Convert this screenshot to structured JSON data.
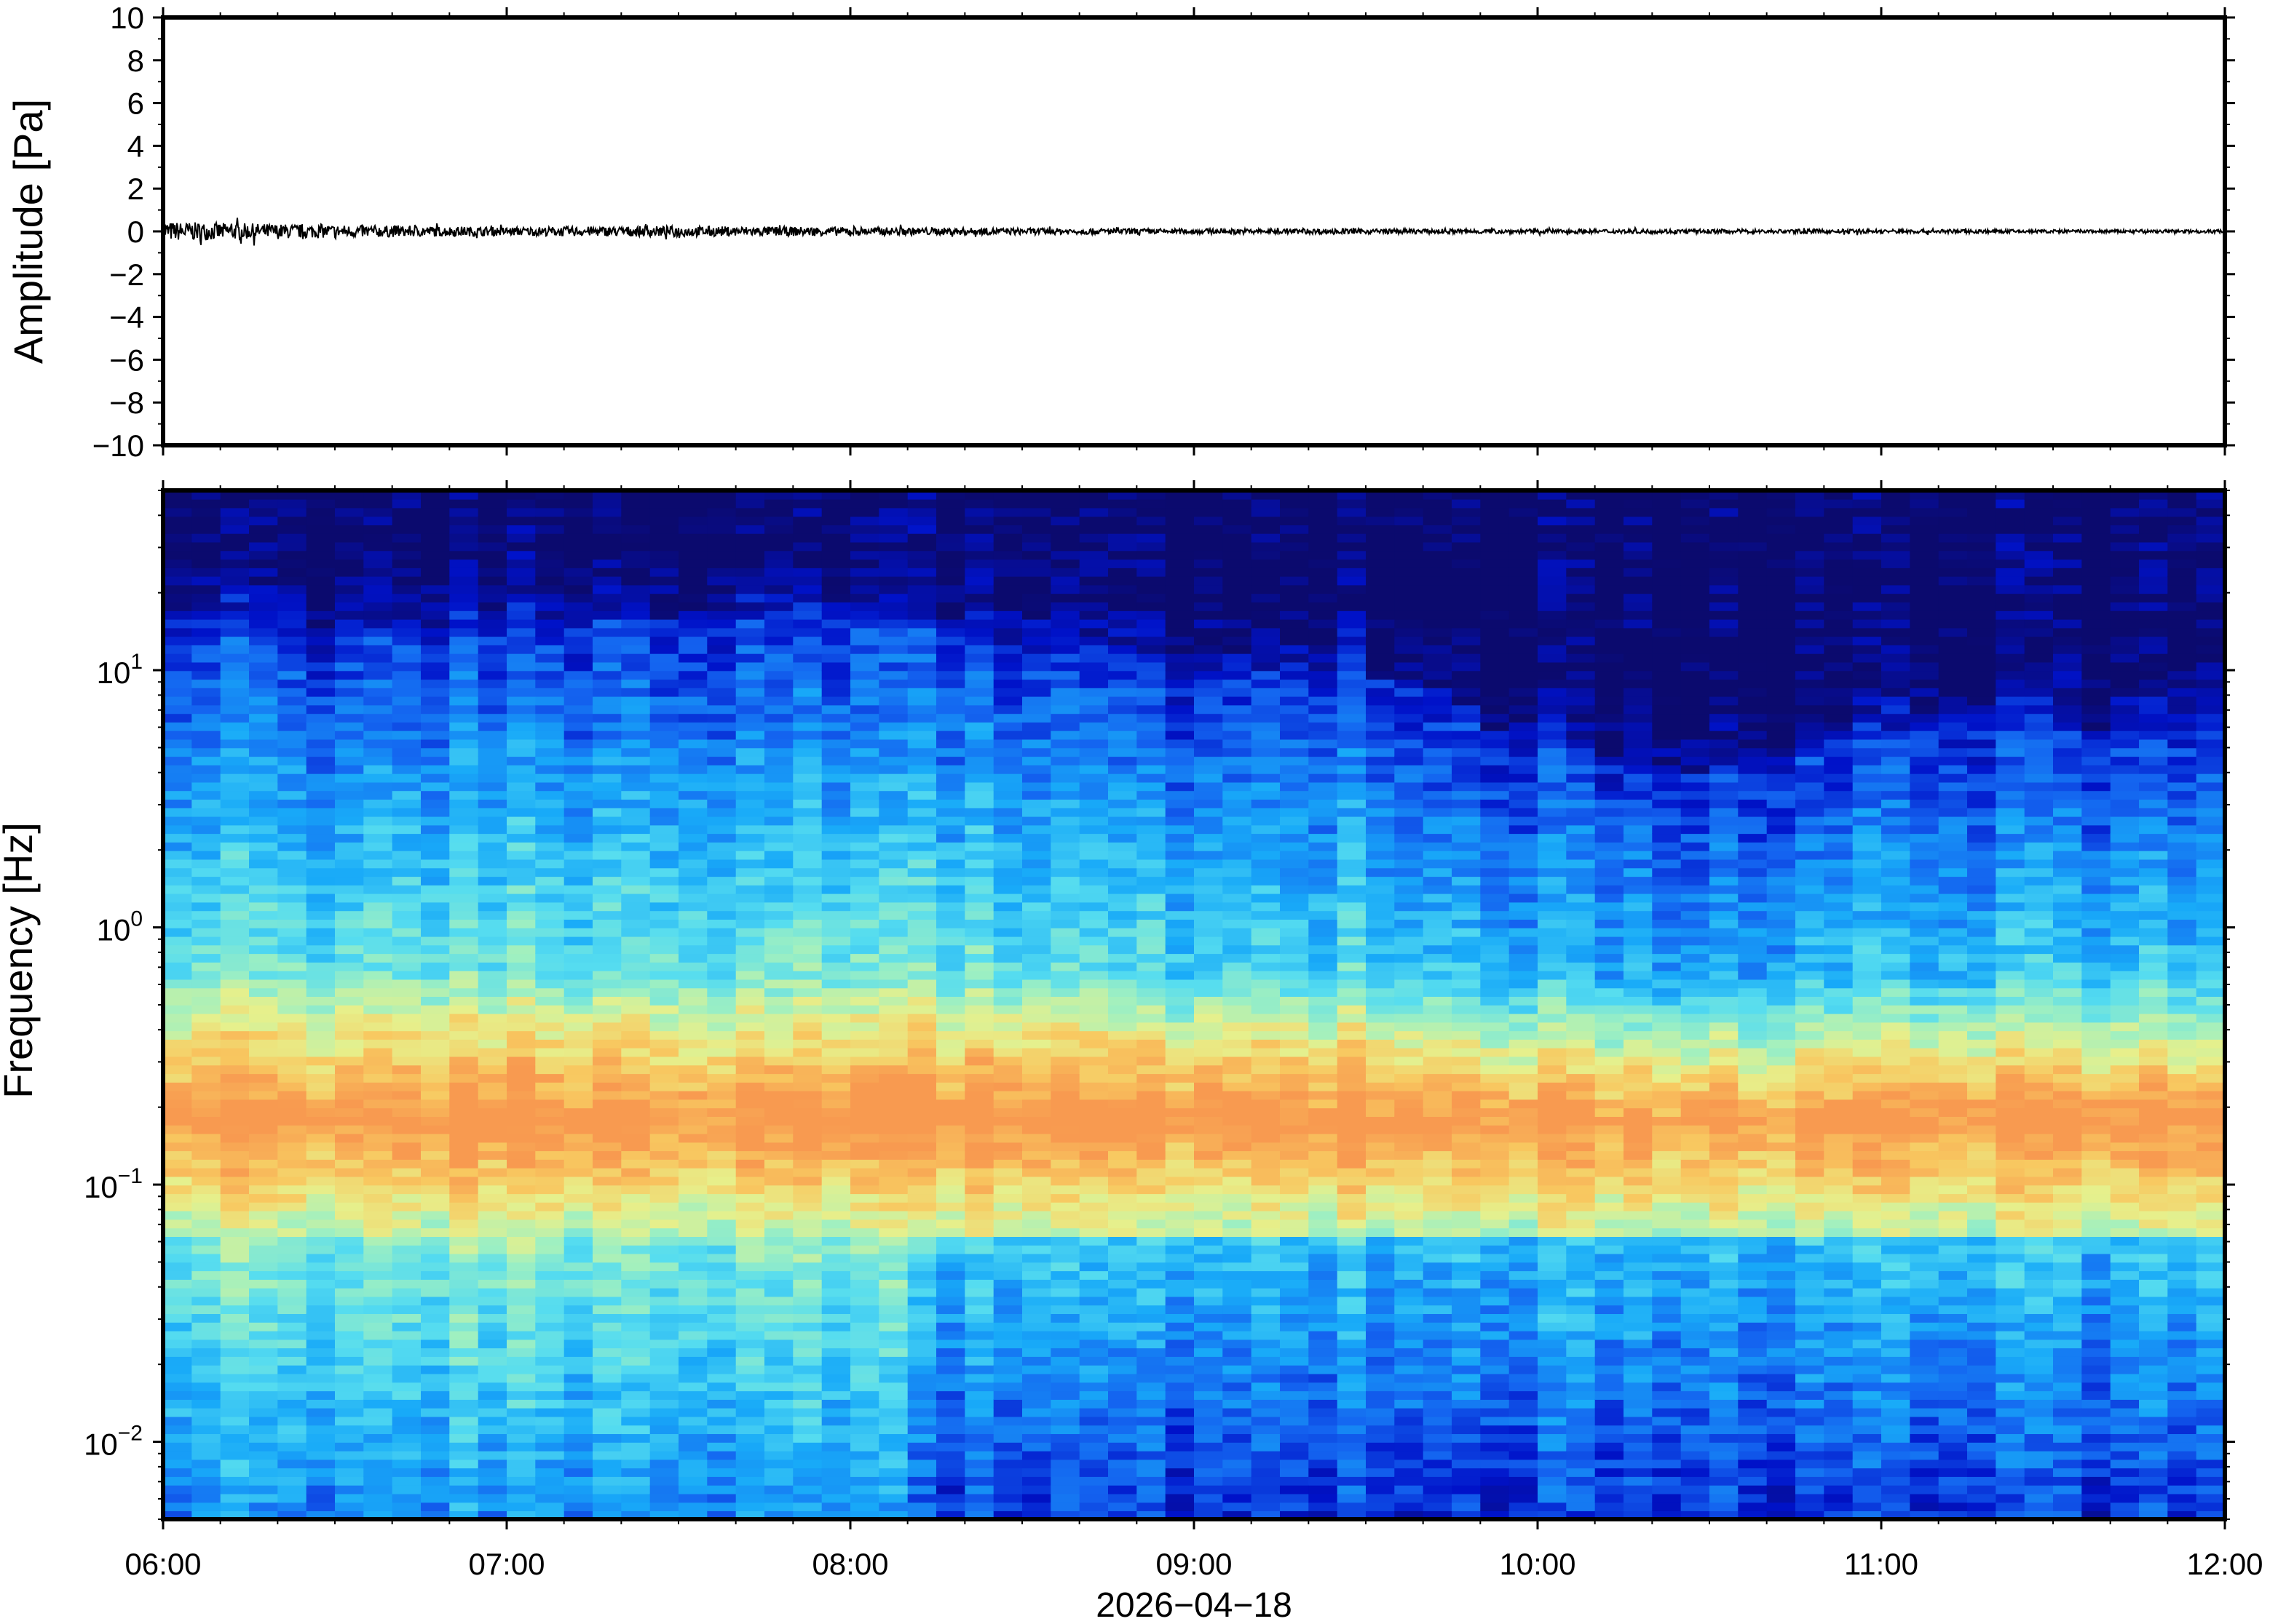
{
  "chart_data": [
    {
      "type": "line",
      "ylabel": "Amplitude [Pa]",
      "ylim": [
        -10,
        10
      ],
      "yticks": [
        "10",
        "8",
        "6",
        "4",
        "2",
        "0",
        "−2",
        "−4",
        "−6",
        "−8",
        "−10"
      ],
      "ytick_values": [
        10,
        8,
        6,
        4,
        2,
        0,
        -2,
        -4,
        -6,
        -8,
        -10
      ],
      "xlim": [
        "06:00",
        "12:00"
      ],
      "series": [
        {
          "color": "#000000",
          "x_hours": [
            6.0,
            6.5,
            7.0,
            7.5,
            8.0,
            8.5,
            9.0,
            9.5,
            10.0,
            10.5,
            11.0,
            11.5,
            12.0
          ],
          "envelope_pa": [
            0.45,
            0.3,
            0.2,
            0.25,
            0.2,
            0.15,
            0.12,
            0.12,
            0.1,
            0.1,
            0.1,
            0.08,
            0.08
          ]
        }
      ]
    },
    {
      "type": "heatmap",
      "ylabel": "Frequency [Hz]",
      "yscale": "log",
      "ylim": [
        0.005,
        50
      ],
      "yticks": [
        {
          "base": "10",
          "exp": "−2",
          "value": 0.01
        },
        {
          "base": "10",
          "exp": "−1",
          "value": 0.1
        },
        {
          "base": "10",
          "exp": "0",
          "value": 1
        },
        {
          "base": "10",
          "exp": "1",
          "value": 10
        }
      ],
      "xlabel": "2026−04−18",
      "xticks": [
        "06:00",
        "07:00",
        "08:00",
        "09:00",
        "10:00",
        "11:00",
        "12:00"
      ],
      "xtick_hours": [
        6,
        7,
        8,
        9,
        10,
        11,
        12
      ],
      "colormap": [
        "#0b0a6e",
        "#0012c9",
        "#1464f0",
        "#18aaf8",
        "#55dcf0",
        "#a0f0c0",
        "#e6f08c",
        "#f8c860",
        "#f89a50"
      ],
      "upper_cutoff_hz": {
        "hours": [
          6.0,
          6.5,
          7.0,
          7.5,
          8.0,
          8.5,
          9.0,
          9.5,
          10.0,
          10.5,
          11.0,
          11.5,
          12.0
        ],
        "values": [
          17,
          15,
          15,
          16,
          16,
          12,
          10,
          10,
          5,
          4,
          6,
          6,
          6
        ]
      },
      "peak_band_hz": [
        0.15,
        0.22
      ]
    }
  ]
}
